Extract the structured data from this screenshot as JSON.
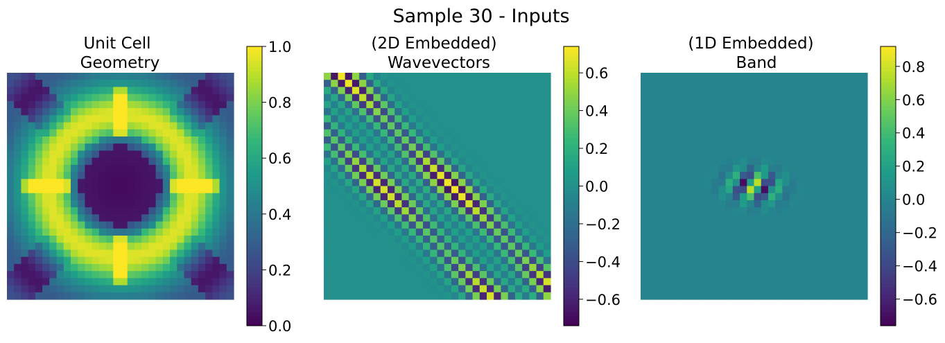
{
  "figure": {
    "suptitle": "Sample 30 - Inputs"
  },
  "chart_data": [
    {
      "type": "heatmap",
      "title_lines": [
        "Unit Cell",
        "Geometry"
      ],
      "grid_size": 32,
      "pattern": "unit-cell",
      "colormap": "viridis",
      "clim": [
        0.0,
        1.0
      ],
      "colorbar_ticks": [
        "0.0",
        "0.2",
        "0.4",
        "0.6",
        "0.8",
        "1.0"
      ],
      "colorbar_tick_values": [
        0.0,
        0.2,
        0.4,
        0.6,
        0.8,
        1.0
      ]
    },
    {
      "type": "heatmap",
      "title_lines": [
        "(2D Embedded)",
        "Wavevectors"
      ],
      "grid_size": 32,
      "pattern": "wavevectors",
      "colormap": "viridis",
      "clim": [
        -0.74,
        0.74
      ],
      "colorbar_ticks": [
        "−0.6",
        "−0.4",
        "−0.2",
        "0.0",
        "0.2",
        "0.4",
        "0.6"
      ],
      "colorbar_tick_values": [
        -0.6,
        -0.4,
        -0.2,
        0.0,
        0.2,
        0.4,
        0.6
      ]
    },
    {
      "type": "heatmap",
      "title_lines": [
        "(1D Embedded)",
        "Band"
      ],
      "grid_size": 32,
      "pattern": "band",
      "colormap": "viridis",
      "clim": [
        -0.76,
        0.92
      ],
      "colorbar_ticks": [
        "−0.6",
        "−0.4",
        "−0.2",
        "0.0",
        "0.2",
        "0.4",
        "0.6",
        "0.8"
      ],
      "colorbar_tick_values": [
        -0.6,
        -0.4,
        -0.2,
        0.0,
        0.2,
        0.4,
        0.6,
        0.8
      ]
    }
  ]
}
